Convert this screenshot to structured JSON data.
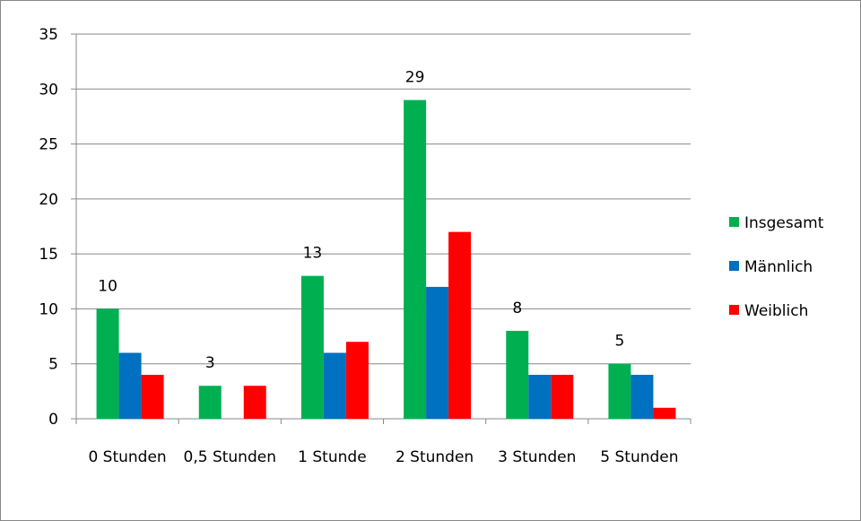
{
  "chart_data": {
    "type": "bar",
    "categories": [
      "0 Stunden",
      "0,5 Stunden",
      "1 Stunde",
      "2 Stunden",
      "3 Stunden",
      "5 Stunden"
    ],
    "series": [
      {
        "name": "Insgesamt",
        "color": "#00b050",
        "values": [
          10,
          3,
          13,
          29,
          8,
          5
        ],
        "data_labels": true
      },
      {
        "name": "Männlich",
        "color": "#0070c0",
        "values": [
          6,
          0,
          6,
          12,
          4,
          4
        ],
        "data_labels": false
      },
      {
        "name": "Weiblich",
        "color": "#ff0000",
        "values": [
          4,
          3,
          7,
          17,
          4,
          1
        ],
        "data_labels": false
      }
    ],
    "ylim": [
      0,
      35
    ],
    "yticks": [
      0,
      5,
      10,
      15,
      20,
      25,
      30,
      35
    ],
    "grid": true,
    "legend": "right"
  }
}
